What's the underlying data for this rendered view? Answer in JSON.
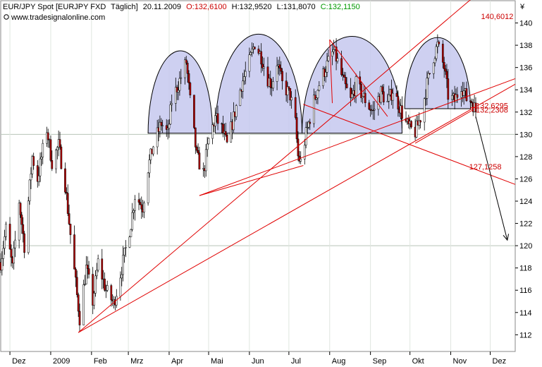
{
  "header": {
    "instrument": "EUR/JPY Spot [EURJPY FXD",
    "period": "Täglich]",
    "date": "20.11.2009",
    "open_label": "O:132,6100",
    "high_label": "H:132,9520",
    "low_label": "L:131,8070",
    "close_label": "C:132,1150",
    "website": "www.tradesignalonline.com",
    "currency_symbol": "¥",
    "colors": {
      "open": "#cc0000",
      "high": "#000000",
      "low": "#000000",
      "close": "#009900"
    }
  },
  "chart_data": {
    "type": "candlestick",
    "x_range": [
      "2008-11-24",
      "2009-12-20"
    ],
    "y_range": [
      110.5,
      142
    ],
    "y_ticks": [
      112,
      114,
      116,
      118,
      120,
      122,
      124,
      126,
      128,
      130,
      132,
      134,
      136,
      138,
      140
    ],
    "horizontal_gridlines": [
      120,
      130
    ],
    "x_tick_labels": [
      {
        "date": "2008-12-01",
        "label": "Dez"
      },
      {
        "date": "2009-01-01",
        "label": "2009"
      },
      {
        "date": "2009-02-01",
        "label": "Feb"
      },
      {
        "date": "2009-03-01",
        "label": "Mrz"
      },
      {
        "date": "2009-04-01",
        "label": "Apr"
      },
      {
        "date": "2009-05-01",
        "label": "Mai"
      },
      {
        "date": "2009-06-01",
        "label": "Jun"
      },
      {
        "date": "2009-07-01",
        "label": "Jul"
      },
      {
        "date": "2009-08-01",
        "label": "Aug"
      },
      {
        "date": "2009-09-01",
        "label": "Sep"
      },
      {
        "date": "2009-10-01",
        "label": "Okt"
      },
      {
        "date": "2009-11-01",
        "label": "Nov"
      },
      {
        "date": "2009-12-01",
        "label": "Dez"
      }
    ],
    "price_path": [
      [
        "2008-11-24",
        118.5
      ],
      [
        "2008-11-28",
        121.5
      ],
      [
        "2008-12-03",
        118
      ],
      [
        "2008-12-08",
        124
      ],
      [
        "2008-12-12",
        120
      ],
      [
        "2008-12-18",
        128
      ],
      [
        "2008-12-22",
        126
      ],
      [
        "2008-12-29",
        130.5
      ],
      [
        "2009-01-02",
        127.5
      ],
      [
        "2009-01-07",
        129
      ],
      [
        "2009-01-12",
        125.5
      ],
      [
        "2009-01-16",
        121
      ],
      [
        "2009-01-21",
        115.5
      ],
      [
        "2009-01-23",
        113.5
      ],
      [
        "2009-01-28",
        118
      ],
      [
        "2009-02-02",
        115
      ],
      [
        "2009-02-06",
        118.5
      ],
      [
        "2009-02-12",
        116
      ],
      [
        "2009-02-18",
        114.8
      ],
      [
        "2009-02-24",
        118
      ],
      [
        "2009-03-03",
        122
      ],
      [
        "2009-03-06",
        124.5
      ],
      [
        "2009-03-12",
        123.5
      ],
      [
        "2009-03-16",
        127
      ],
      [
        "2009-03-20",
        129
      ],
      [
        "2009-03-26",
        131
      ],
      [
        "2009-03-31",
        130
      ],
      [
        "2009-04-03",
        133
      ],
      [
        "2009-04-08",
        134.5
      ],
      [
        "2009-04-14",
        136.5
      ],
      [
        "2009-04-17",
        133
      ],
      [
        "2009-04-22",
        128
      ],
      [
        "2009-04-27",
        126.5
      ],
      [
        "2009-05-01",
        129.5
      ],
      [
        "2009-05-06",
        131.5
      ],
      [
        "2009-05-11",
        130.5
      ],
      [
        "2009-05-15",
        129
      ],
      [
        "2009-05-20",
        131.5
      ],
      [
        "2009-05-26",
        134.5
      ],
      [
        "2009-06-01",
        136.5
      ],
      [
        "2009-06-05",
        138.2
      ],
      [
        "2009-06-10",
        137
      ],
      [
        "2009-06-15",
        135
      ],
      [
        "2009-06-18",
        134.5
      ],
      [
        "2009-06-22",
        136.5
      ],
      [
        "2009-06-26",
        134.5
      ],
      [
        "2009-07-02",
        133.5
      ],
      [
        "2009-07-06",
        131
      ],
      [
        "2009-07-08",
        128
      ],
      [
        "2009-07-10",
        127.5
      ],
      [
        "2009-07-14",
        130
      ],
      [
        "2009-07-20",
        133
      ],
      [
        "2009-07-24",
        134.5
      ],
      [
        "2009-07-29",
        136
      ],
      [
        "2009-08-04",
        137.5
      ],
      [
        "2009-08-07",
        136.5
      ],
      [
        "2009-08-12",
        134.5
      ],
      [
        "2009-08-17",
        133
      ],
      [
        "2009-08-21",
        134.5
      ],
      [
        "2009-08-26",
        133.5
      ],
      [
        "2009-08-31",
        132.5
      ],
      [
        "2009-09-03",
        132
      ],
      [
        "2009-09-09",
        133.8
      ],
      [
        "2009-09-14",
        132.8
      ],
      [
        "2009-09-18",
        134
      ],
      [
        "2009-09-23",
        132.5
      ],
      [
        "2009-09-28",
        131
      ],
      [
        "2009-10-01",
        130.5
      ],
      [
        "2009-10-05",
        130.2
      ],
      [
        "2009-10-09",
        131.5
      ],
      [
        "2009-10-14",
        134.5
      ],
      [
        "2009-10-19",
        137
      ],
      [
        "2009-10-22",
        138
      ],
      [
        "2009-10-27",
        136
      ],
      [
        "2009-10-30",
        133.5
      ],
      [
        "2009-11-04",
        133
      ],
      [
        "2009-11-09",
        134.5
      ],
      [
        "2009-11-13",
        133.2
      ],
      [
        "2009-11-17",
        133
      ],
      [
        "2009-11-20",
        132.1
      ]
    ],
    "highlight_arcs": [
      {
        "start": "2009-03-16",
        "end": "2009-05-04",
        "base": 130.1,
        "peak": 137.5
      },
      {
        "start": "2009-05-06",
        "end": "2009-07-11",
        "base": 130.1,
        "peak": 139
      },
      {
        "start": "2009-07-11",
        "end": "2009-09-25",
        "base": 130.1,
        "peak": 138.8
      },
      {
        "start": "2009-09-27",
        "end": "2009-11-16",
        "base": 132.3,
        "peak": 138.7
      }
    ],
    "trend_lines": [
      {
        "from": [
          "2009-01-22",
          112.2
        ],
        "to": [
          "2009-12-20",
          134.5
        ]
      },
      {
        "from": [
          "2009-01-22",
          112.2
        ],
        "to": [
          "2009-12-20",
          145.5
        ]
      },
      {
        "from": [
          "2009-04-24",
          124.5
        ],
        "to": [
          "2009-12-20",
          135
        ]
      },
      {
        "from": [
          "2009-04-24",
          124.5
        ],
        "to": [
          "2009-07-12",
          127.2
        ]
      },
      {
        "from": [
          "2009-07-12",
          132.7
        ],
        "to": [
          "2009-12-20",
          125.5
        ]
      },
      {
        "from": [
          "2009-08-01",
          138.5
        ],
        "to": [
          "2009-09-14",
          131.6
        ]
      },
      {
        "from": [
          "2009-08-01",
          138.5
        ],
        "to": [
          "2009-08-03",
          132.8
        ]
      },
      {
        "from": [
          "2009-10-05",
          129.2
        ],
        "to": [
          "2009-11-18",
          132.2
        ]
      },
      {
        "from": [
          "2009-11-16",
          132.4
        ],
        "to": [
          "2009-11-20",
          132.4
        ]
      }
    ],
    "arrow": {
      "from": [
        "2009-11-20",
        131.6
      ],
      "to": [
        "2009-12-14",
        120.5
      ]
    },
    "level_labels": [
      {
        "value": "140,6012",
        "date": "2009-11-24",
        "price": 140.6
      },
      {
        "value": "132,6295",
        "date": "2009-11-20",
        "price": 132.6
      },
      {
        "value": "132,2308",
        "date": "2009-11-20",
        "price": 132.2
      },
      {
        "value": "127,1258",
        "date": "2009-11-15",
        "price": 127.1
      }
    ]
  }
}
